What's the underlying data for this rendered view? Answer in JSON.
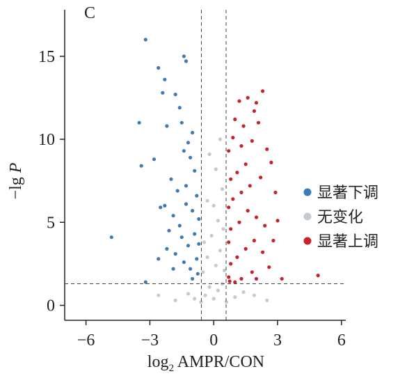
{
  "chart_data": {
    "type": "scatter",
    "title": "",
    "panel_label": "C",
    "xlabel": {
      "prefix": "log",
      "subscript": "2",
      "suffix": " AMPR/CON"
    },
    "ylabel": {
      "minus": "−",
      "main": "lg ",
      "italic": "P"
    },
    "xlim": [
      -7,
      6.2
    ],
    "ylim": [
      -0.9,
      17.8
    ],
    "x_ticks": [
      {
        "value": -6,
        "label": "−6"
      },
      {
        "value": -3,
        "label": "−3"
      },
      {
        "value": 0,
        "label": "0"
      },
      {
        "value": 3,
        "label": "3"
      },
      {
        "value": 6,
        "label": "6"
      }
    ],
    "y_ticks": [
      {
        "value": 0,
        "label": "0"
      },
      {
        "value": 5,
        "label": "5"
      },
      {
        "value": 10,
        "label": "10"
      },
      {
        "value": 15,
        "label": "15"
      }
    ],
    "threshold_lines": {
      "x": [
        -0.58,
        0.58
      ],
      "y": 1.3,
      "style": "dashed"
    },
    "grid": false,
    "legend_position": "right",
    "legend": [
      {
        "name": "显著下调",
        "color": "#3d7ab8"
      },
      {
        "name": "无变化",
        "color": "#c3cad2"
      },
      {
        "name": "显著上调",
        "color": "#c8232c"
      }
    ],
    "series": [
      {
        "name": "显著下调",
        "color": "#3d7ab8",
        "points": [
          [
            -3.2,
            16.0
          ],
          [
            -2.6,
            14.3
          ],
          [
            -2.3,
            13.6
          ],
          [
            -1.4,
            15.0
          ],
          [
            -1.3,
            14.7
          ],
          [
            -3.5,
            11.0
          ],
          [
            -3.4,
            8.4
          ],
          [
            -2.4,
            12.8
          ],
          [
            -2.2,
            10.8
          ],
          [
            -2.8,
            8.8
          ],
          [
            -4.8,
            4.1
          ],
          [
            -3.2,
            1.4
          ],
          [
            -2.6,
            2.8
          ],
          [
            -2.3,
            6.0
          ],
          [
            -1.8,
            12.7
          ],
          [
            -1.6,
            11.9
          ],
          [
            -1.5,
            11.0
          ],
          [
            -1.2,
            9.8
          ],
          [
            -1.1,
            8.9
          ],
          [
            -1.0,
            10.4
          ],
          [
            -0.9,
            8.1
          ],
          [
            -1.4,
            9.3
          ],
          [
            -2.0,
            7.6
          ],
          [
            -1.7,
            6.9
          ],
          [
            -1.3,
            7.2
          ],
          [
            -1.9,
            5.4
          ],
          [
            -1.6,
            4.8
          ],
          [
            -1.3,
            6.1
          ],
          [
            -1.0,
            5.7
          ],
          [
            -0.8,
            6.6
          ],
          [
            -1.5,
            4.1
          ],
          [
            -1.2,
            3.6
          ],
          [
            -0.9,
            4.3
          ],
          [
            -0.7,
            5.2
          ],
          [
            -1.8,
            3.1
          ],
          [
            -1.4,
            2.6
          ],
          [
            -1.1,
            2.2
          ],
          [
            -0.8,
            2.8
          ],
          [
            -0.7,
            3.7
          ],
          [
            -1.0,
            1.6
          ],
          [
            -0.75,
            1.9
          ],
          [
            -2.1,
            4.5
          ],
          [
            -2.5,
            5.9
          ],
          [
            -2.2,
            3.4
          ],
          [
            -1.9,
            2.2
          ]
        ]
      },
      {
        "name": "无变化",
        "color": "#c3cad2",
        "points": [
          [
            -0.4,
            0.6
          ],
          [
            -0.2,
            1.1
          ],
          [
            0.0,
            0.4
          ],
          [
            0.2,
            0.9
          ],
          [
            0.4,
            1.3
          ],
          [
            -0.5,
            2.0
          ],
          [
            -0.3,
            2.9
          ],
          [
            0.1,
            2.4
          ],
          [
            0.3,
            3.3
          ],
          [
            0.5,
            2.1
          ],
          [
            -0.1,
            4.2
          ],
          [
            0.2,
            5.1
          ],
          [
            -0.3,
            6.3
          ],
          [
            0.4,
            7.0
          ],
          [
            0.1,
            8.2
          ],
          [
            -0.2,
            9.1
          ],
          [
            0.3,
            10.0
          ],
          [
            -0.45,
            3.8
          ],
          [
            0.45,
            4.6
          ],
          [
            0.0,
            6.0
          ],
          [
            -1.2,
            0.7
          ],
          [
            -0.9,
            0.4
          ],
          [
            1.0,
            0.5
          ],
          [
            1.4,
            0.8
          ],
          [
            -1.8,
            0.3
          ],
          [
            1.9,
            0.6
          ],
          [
            2.5,
            0.3
          ],
          [
            -2.6,
            0.6
          ],
          [
            0.6,
            0.2
          ],
          [
            -0.6,
            0.2
          ]
        ]
      },
      {
        "name": "显著上调",
        "color": "#c8232c",
        "points": [
          [
            2.3,
            12.9
          ],
          [
            2.0,
            12.2
          ],
          [
            1.6,
            12.5
          ],
          [
            1.2,
            12.3
          ],
          [
            1.9,
            11.7
          ],
          [
            2.1,
            11.0
          ],
          [
            1.4,
            10.8
          ],
          [
            1.0,
            11.2
          ],
          [
            2.7,
            8.6
          ],
          [
            2.5,
            9.4
          ],
          [
            1.8,
            9.9
          ],
          [
            1.3,
            9.6
          ],
          [
            0.9,
            10.1
          ],
          [
            0.7,
            9.3
          ],
          [
            1.5,
            8.5
          ],
          [
            1.1,
            8.0
          ],
          [
            0.8,
            7.6
          ],
          [
            2.2,
            7.7
          ],
          [
            1.7,
            7.2
          ],
          [
            1.3,
            6.8
          ],
          [
            0.9,
            6.4
          ],
          [
            0.7,
            5.9
          ],
          [
            2.0,
            5.3
          ],
          [
            2.4,
            4.8
          ],
          [
            1.6,
            5.7
          ],
          [
            1.2,
            5.0
          ],
          [
            0.8,
            4.6
          ],
          [
            0.7,
            3.8
          ],
          [
            1.9,
            3.9
          ],
          [
            2.3,
            3.2
          ],
          [
            1.5,
            3.4
          ],
          [
            1.1,
            2.9
          ],
          [
            0.8,
            2.5
          ],
          [
            0.7,
            1.7
          ],
          [
            1.8,
            2.0
          ],
          [
            2.6,
            2.3
          ],
          [
            1.3,
            1.6
          ],
          [
            1.0,
            1.4
          ],
          [
            0.75,
            1.45
          ],
          [
            2.0,
            1.6
          ],
          [
            3.0,
            5.1
          ],
          [
            2.8,
            3.9
          ],
          [
            2.9,
            6.8
          ],
          [
            3.2,
            1.6
          ],
          [
            4.9,
            1.8
          ]
        ]
      }
    ]
  }
}
